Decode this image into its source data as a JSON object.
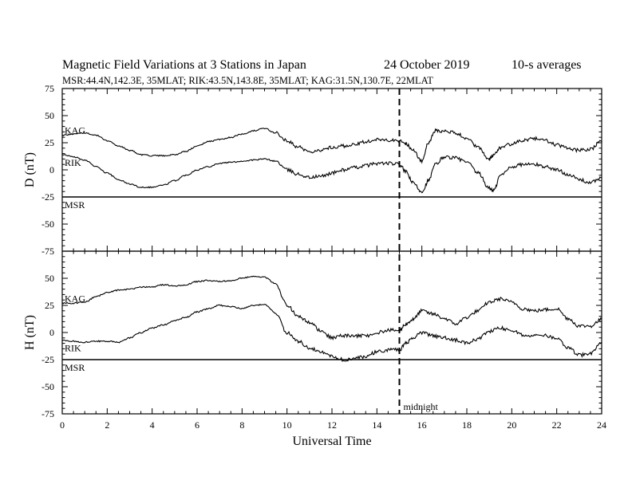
{
  "header": {
    "title": "Magnetic Field Variations at 3 Stations in Japan",
    "date": "24 October 2019",
    "averaging": "10-s averages",
    "stations_line": "MSR:44.4N,142.3E, 35MLAT;  RIK:43.5N,143.8E, 35MLAT;  KAG:31.5N,130.7E, 22MLAT"
  },
  "chart_data": [
    {
      "type": "line",
      "ylabel": "D (nT)",
      "xlabel": "",
      "xlim": [
        0,
        24
      ],
      "ylim": [
        -75,
        75
      ],
      "x_ticks": [
        "0",
        "2",
        "4",
        "6",
        "8",
        "10",
        "12",
        "14",
        "16",
        "18",
        "20",
        "22",
        "24"
      ],
      "y_ticks": [
        "75",
        "50",
        "25",
        "0",
        "-25",
        "-50",
        "-75"
      ],
      "annotations": [],
      "series": [
        {
          "name": "KAG",
          "x": [
            0,
            0.5,
            1,
            1.5,
            2,
            2.5,
            3,
            3.5,
            4,
            4.5,
            5,
            5.5,
            6,
            6.5,
            7,
            7.5,
            8,
            8.5,
            9,
            9.5,
            10,
            10.5,
            11,
            11.5,
            12,
            12.5,
            13,
            13.5,
            14,
            14.5,
            15,
            15.3,
            15.6,
            16,
            16.3,
            16.6,
            17,
            17.5,
            18,
            18.5,
            19,
            19.2,
            19.5,
            20,
            20.5,
            21,
            21.5,
            22,
            22.5,
            23,
            23.5,
            24
          ],
          "y": [
            32,
            33,
            34,
            32,
            27,
            22,
            18,
            14,
            13,
            13,
            14,
            17,
            22,
            26,
            28,
            30,
            33,
            36,
            38,
            34,
            27,
            21,
            17,
            18,
            21,
            22,
            23,
            26,
            28,
            27,
            27,
            24,
            18,
            8,
            25,
            36,
            36,
            34,
            29,
            21,
            10,
            14,
            20,
            24,
            27,
            29,
            27,
            23,
            20,
            18,
            19,
            26
          ]
        },
        {
          "name": "RIK",
          "x": [
            0,
            0.5,
            1,
            1.5,
            2,
            2.5,
            3,
            3.5,
            4,
            4.5,
            5,
            5.5,
            6,
            6.5,
            7,
            7.5,
            8,
            8.5,
            9,
            9.5,
            10,
            10.5,
            11,
            11.5,
            12,
            12.5,
            13,
            13.5,
            14,
            14.5,
            15,
            15.3,
            15.6,
            16,
            16.3,
            16.6,
            17,
            17.5,
            18,
            18.5,
            19,
            19.2,
            19.5,
            20,
            20.5,
            21,
            21.5,
            22,
            22.5,
            23,
            23.5,
            24
          ],
          "y": [
            14,
            12,
            9,
            3,
            -3,
            -9,
            -13,
            -16,
            -16,
            -14,
            -10,
            -5,
            0,
            3,
            6,
            7,
            8,
            9,
            10,
            8,
            0,
            -4,
            -7,
            -6,
            -3,
            0,
            2,
            4,
            6,
            6,
            5,
            -2,
            -12,
            -20,
            -10,
            5,
            12,
            11,
            7,
            -3,
            -17,
            -19,
            -5,
            3,
            5,
            5,
            3,
            0,
            -4,
            -9,
            -12,
            -7
          ]
        },
        {
          "name": "MSR",
          "x": [
            0,
            24
          ],
          "y": [
            -25,
            -25
          ]
        }
      ]
    },
    {
      "type": "line",
      "ylabel": "H (nT)",
      "xlabel": "Universal Time",
      "xlim": [
        0,
        24
      ],
      "ylim": [
        -75,
        75
      ],
      "x_ticks": [
        "0",
        "2",
        "4",
        "6",
        "8",
        "10",
        "12",
        "14",
        "16",
        "18",
        "20",
        "22",
        "24"
      ],
      "y_ticks": [
        "75",
        "50",
        "25",
        "0",
        "-25",
        "-50",
        "-75"
      ],
      "annotations": [
        "midnight"
      ],
      "marker": {
        "x": 15,
        "label": "midnight"
      },
      "series": [
        {
          "name": "KAG",
          "x": [
            0,
            0.5,
            1,
            1.5,
            2,
            2.5,
            3,
            3.5,
            4,
            4.5,
            5,
            5.5,
            6,
            6.5,
            7,
            7.5,
            8,
            8.5,
            9,
            9.5,
            10,
            10.5,
            11,
            11.5,
            12,
            12.5,
            13,
            13.5,
            14,
            14.5,
            15,
            15.3,
            15.6,
            16,
            16.5,
            17,
            17.5,
            18,
            18.5,
            19,
            19.5,
            20,
            20.5,
            21,
            21.5,
            22,
            22.5,
            23,
            23.5,
            24
          ],
          "y": [
            27,
            27,
            28,
            33,
            37,
            39,
            40,
            42,
            42,
            44,
            43,
            44,
            47,
            48,
            47,
            48,
            50,
            52,
            51,
            45,
            25,
            15,
            9,
            2,
            -5,
            -3,
            -3,
            -3,
            0,
            2,
            2,
            8,
            12,
            20,
            17,
            13,
            8,
            14,
            20,
            28,
            31,
            28,
            22,
            20,
            21,
            22,
            13,
            6,
            6,
            12
          ]
        },
        {
          "name": "RIK",
          "x": [
            0,
            0.5,
            1,
            1.5,
            2,
            2.5,
            3,
            3.5,
            4,
            4.5,
            5,
            5.5,
            6,
            6.5,
            7,
            7.5,
            8,
            8.5,
            9,
            9.5,
            10,
            10.5,
            11,
            11.5,
            12,
            12.5,
            13,
            13.5,
            14,
            14.5,
            15,
            15.3,
            15.6,
            16,
            16.5,
            17,
            17.5,
            18,
            18.5,
            19,
            19.5,
            20,
            20.5,
            21,
            21.5,
            22,
            22.5,
            23,
            23.5,
            24
          ],
          "y": [
            -7,
            -8,
            -9,
            -8,
            -8,
            -9,
            -5,
            0,
            4,
            7,
            11,
            14,
            19,
            22,
            25,
            24,
            22,
            25,
            26,
            18,
            0,
            -8,
            -14,
            -18,
            -22,
            -25,
            -24,
            -22,
            -18,
            -16,
            -16,
            -10,
            -5,
            0,
            -3,
            -5,
            -7,
            -10,
            -6,
            1,
            4,
            2,
            -2,
            -3,
            -3,
            -6,
            -14,
            -21,
            -19,
            -9
          ]
        },
        {
          "name": "MSR",
          "x": [
            0,
            24
          ],
          "y": [
            -25,
            -25
          ]
        }
      ]
    }
  ]
}
